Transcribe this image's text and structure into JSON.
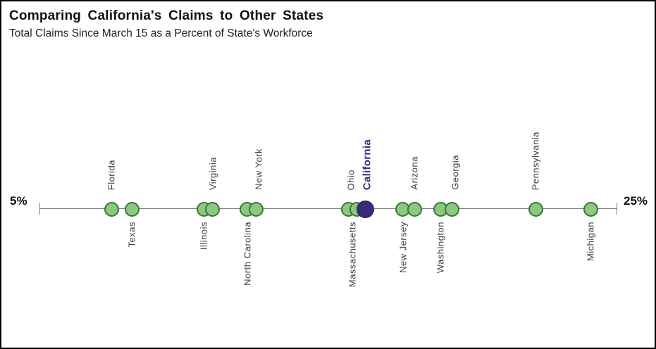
{
  "header": {
    "title": "Comparing California's Claims to Other States",
    "subtitle": "Total Claims Since March 15 as a Percent of State's Workforce"
  },
  "chart_data": {
    "type": "scatter",
    "title": "Comparing California's Claims to Other States",
    "subtitle": "Total Claims Since March 15 as a Percent of State's Workforce",
    "axis": {
      "min": 5,
      "max": 25,
      "min_label": "5%",
      "max_label": "25%",
      "unit": "percent",
      "grid": false
    },
    "colors": {
      "dot_fill": "#8dc87e",
      "dot_border": "#35783a",
      "highlight_fill": "#352c78",
      "highlight_border": "#2a2260",
      "highlight_text": "#372f7d",
      "axis": "#7f7f7f",
      "label_text": "#404040"
    },
    "points": [
      {
        "state": "Florida",
        "value": 7.5,
        "label_position": "above",
        "highlight": false
      },
      {
        "state": "Texas",
        "value": 8.2,
        "label_position": "below",
        "highlight": false
      },
      {
        "state": "Illinois",
        "value": 10.7,
        "label_position": "below",
        "highlight": false
      },
      {
        "state": "Virginia",
        "value": 11.0,
        "label_position": "above",
        "highlight": false
      },
      {
        "state": "North Carolina",
        "value": 12.2,
        "label_position": "below",
        "highlight": false
      },
      {
        "state": "New York",
        "value": 12.5,
        "label_position": "above",
        "highlight": false,
        "label_dx": 4
      },
      {
        "state": "Massachusetts",
        "value": 15.7,
        "label_position": "below",
        "highlight": false,
        "label_dx": 6
      },
      {
        "state": "Ohio",
        "value": 16.0,
        "label_position": "above",
        "highlight": false,
        "label_dx": -8
      },
      {
        "state": "California",
        "value": 16.3,
        "label_position": "above",
        "highlight": true,
        "label_dx": 2
      },
      {
        "state": "New Jersey",
        "value": 17.6,
        "label_position": "below",
        "highlight": false
      },
      {
        "state": "Arizona",
        "value": 18.0,
        "label_position": "above",
        "highlight": false
      },
      {
        "state": "Washington",
        "value": 18.9,
        "label_position": "below",
        "highlight": false
      },
      {
        "state": "Georgia",
        "value": 19.3,
        "label_position": "above",
        "highlight": false,
        "label_dx": 4
      },
      {
        "state": "Pennsylvania",
        "value": 22.2,
        "label_position": "above",
        "highlight": false
      },
      {
        "state": "Michigan",
        "value": 24.1,
        "label_position": "below",
        "highlight": false
      }
    ]
  }
}
